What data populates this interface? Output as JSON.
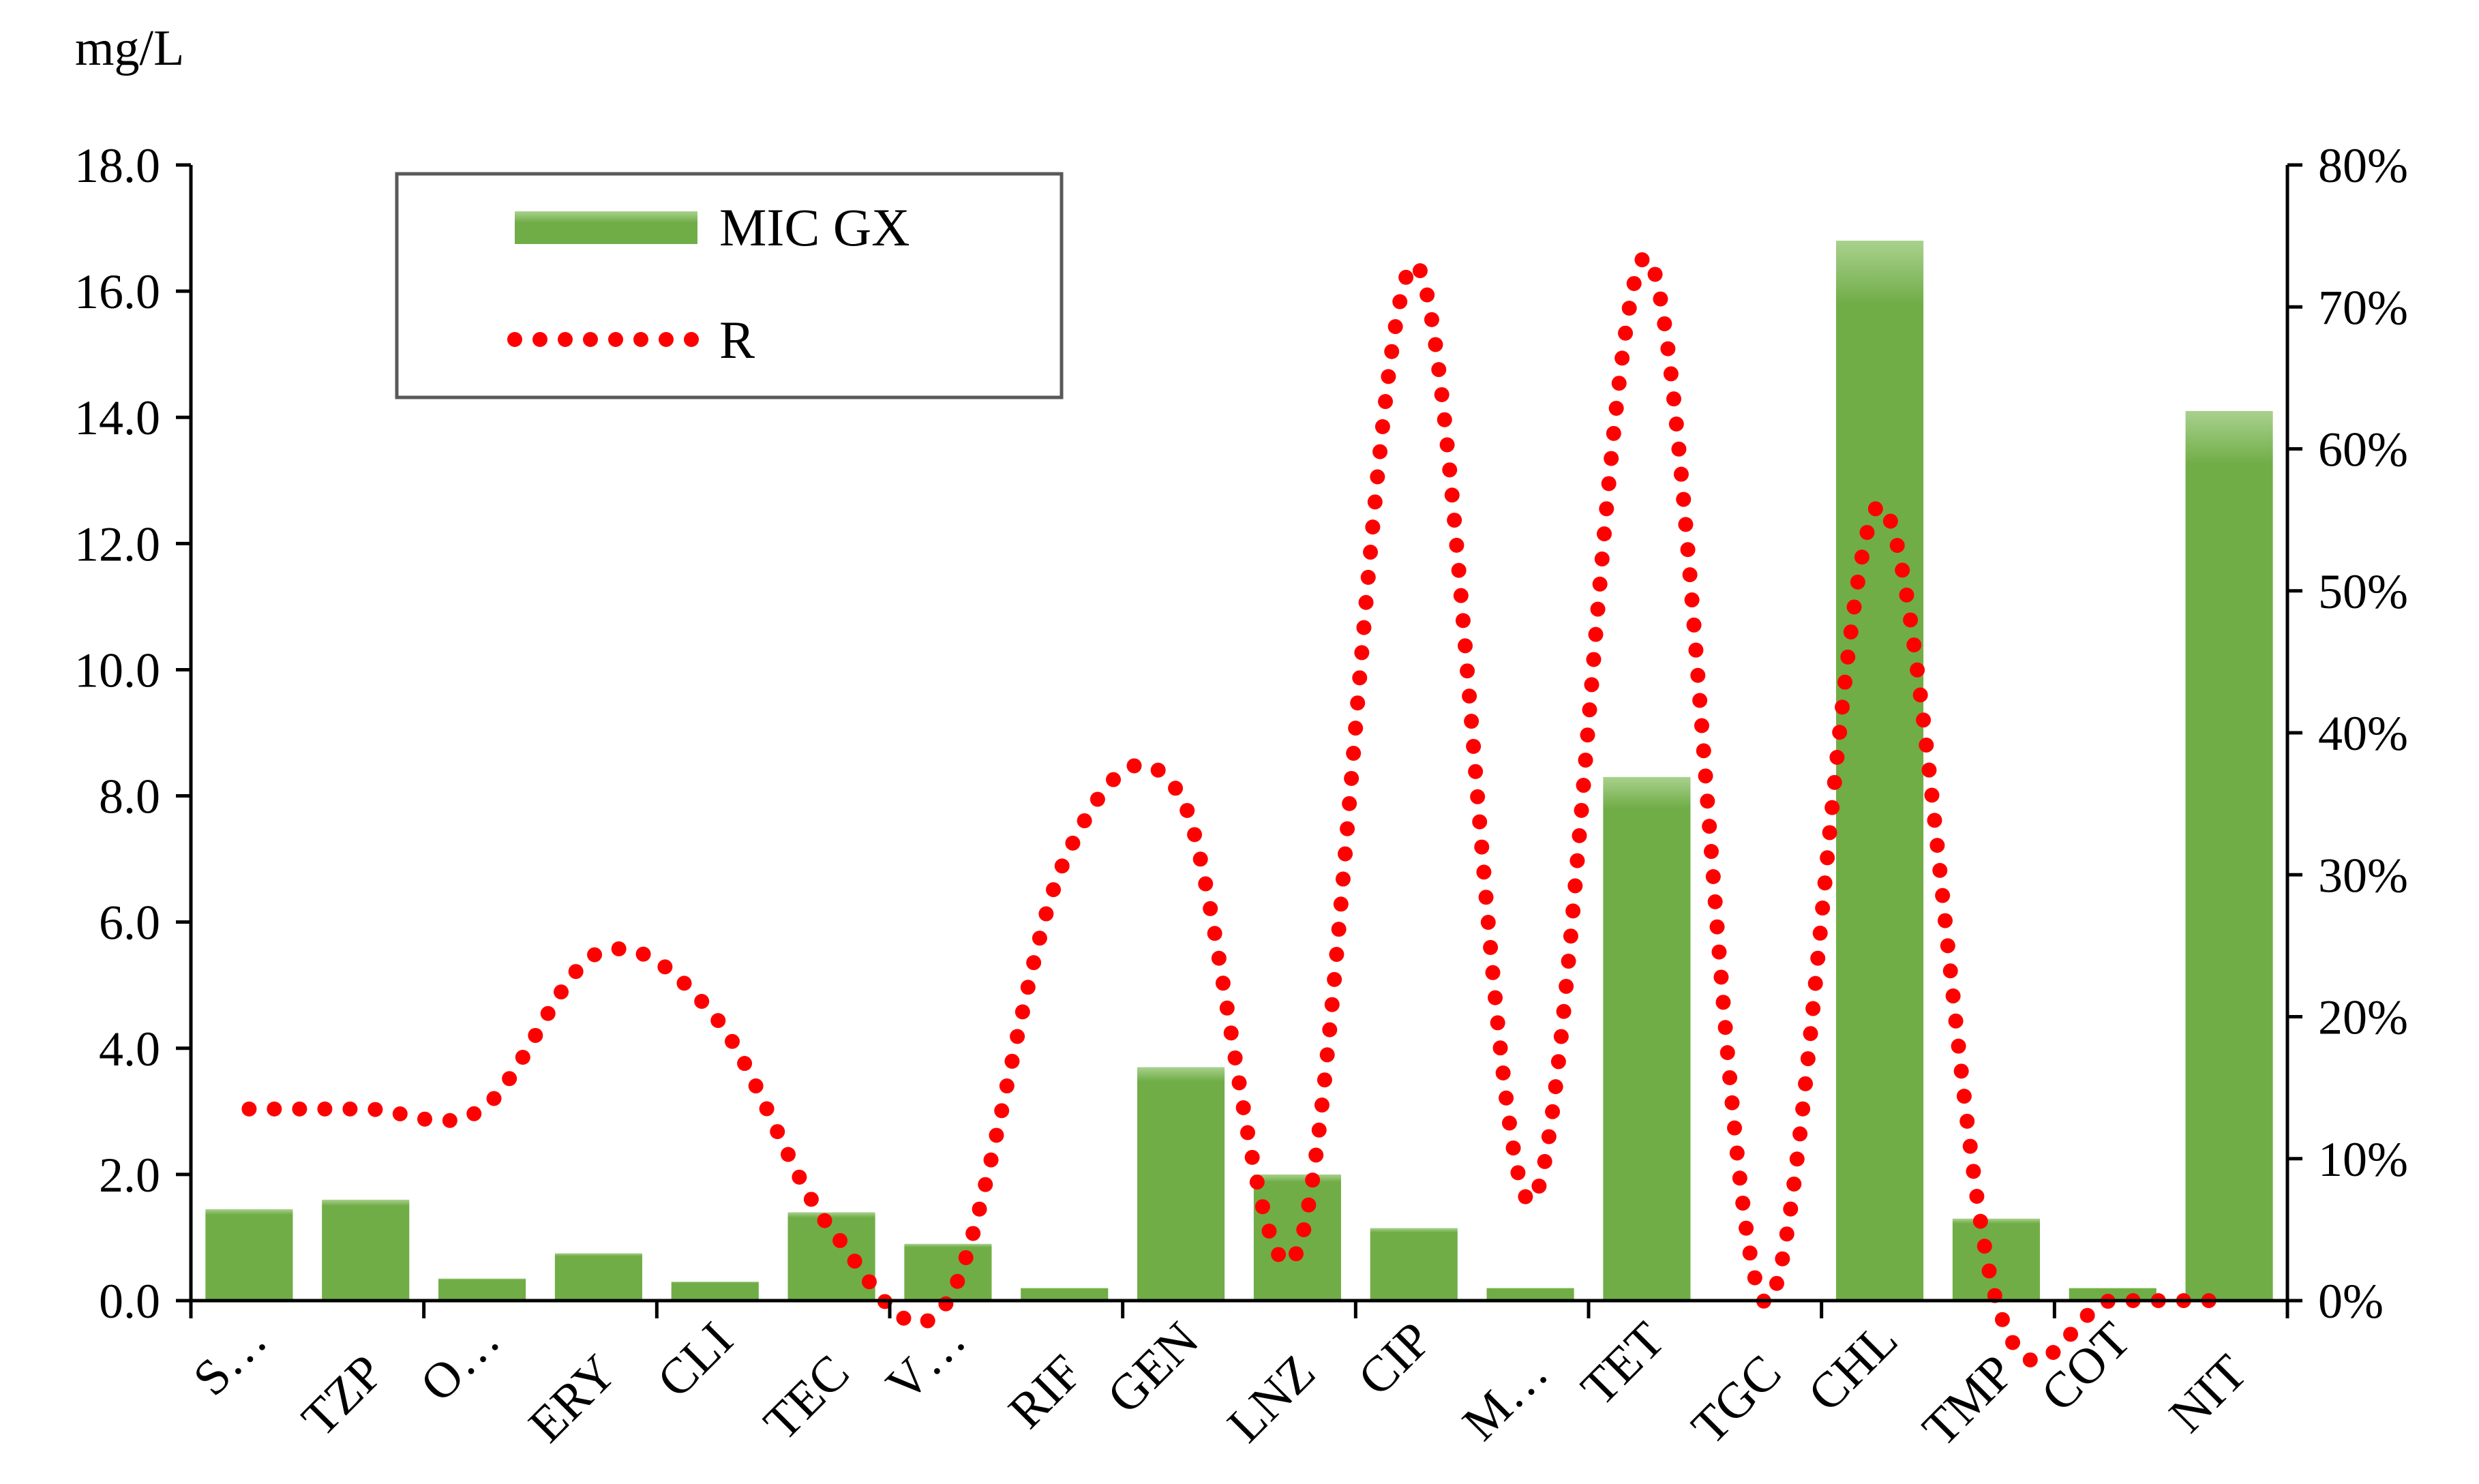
{
  "chart_data": {
    "type": "bar",
    "unit_label": "mg/L",
    "categories": [
      "S…",
      "TZP",
      "O…",
      "ERY",
      "CLI",
      "TEC",
      "V…",
      "RIF",
      "GEN",
      "LNZ",
      "CIP",
      "M…",
      "TET",
      "TGC",
      "CHL",
      "TMP",
      "COT",
      "NIT"
    ],
    "y_left": {
      "min": 0,
      "max": 18,
      "ticks": [
        "0.0",
        "2.0",
        "4.0",
        "6.0",
        "8.0",
        "10.0",
        "12.0",
        "14.0",
        "16.0",
        "18.0"
      ]
    },
    "y_right": {
      "min": 0,
      "max": 80,
      "ticks": [
        "0%",
        "10%",
        "20%",
        "30%",
        "40%",
        "50%",
        "60%",
        "70%",
        "80%"
      ]
    },
    "series": [
      {
        "name": "MIC GX",
        "type": "bar",
        "axis": "left",
        "color": "#70ad47",
        "values": [
          1.45,
          1.6,
          0.35,
          0.75,
          0.3,
          1.4,
          0.9,
          0.2,
          3.7,
          2.0,
          1.15,
          0.2,
          8.3,
          0.0,
          16.8,
          1.3,
          0.2,
          14.1
        ]
      },
      {
        "name": "R",
        "type": "line",
        "style": "dotted",
        "axis": "right",
        "color": "#ff0000",
        "values": [
          13.5,
          13.5,
          13.5,
          24.5,
          20,
          5,
          0,
          31,
          35.5,
          3.5,
          73,
          7,
          73.5,
          0,
          56,
          0,
          0,
          0
        ]
      }
    ],
    "legend": {
      "position": "top-left"
    },
    "grid": false
  }
}
